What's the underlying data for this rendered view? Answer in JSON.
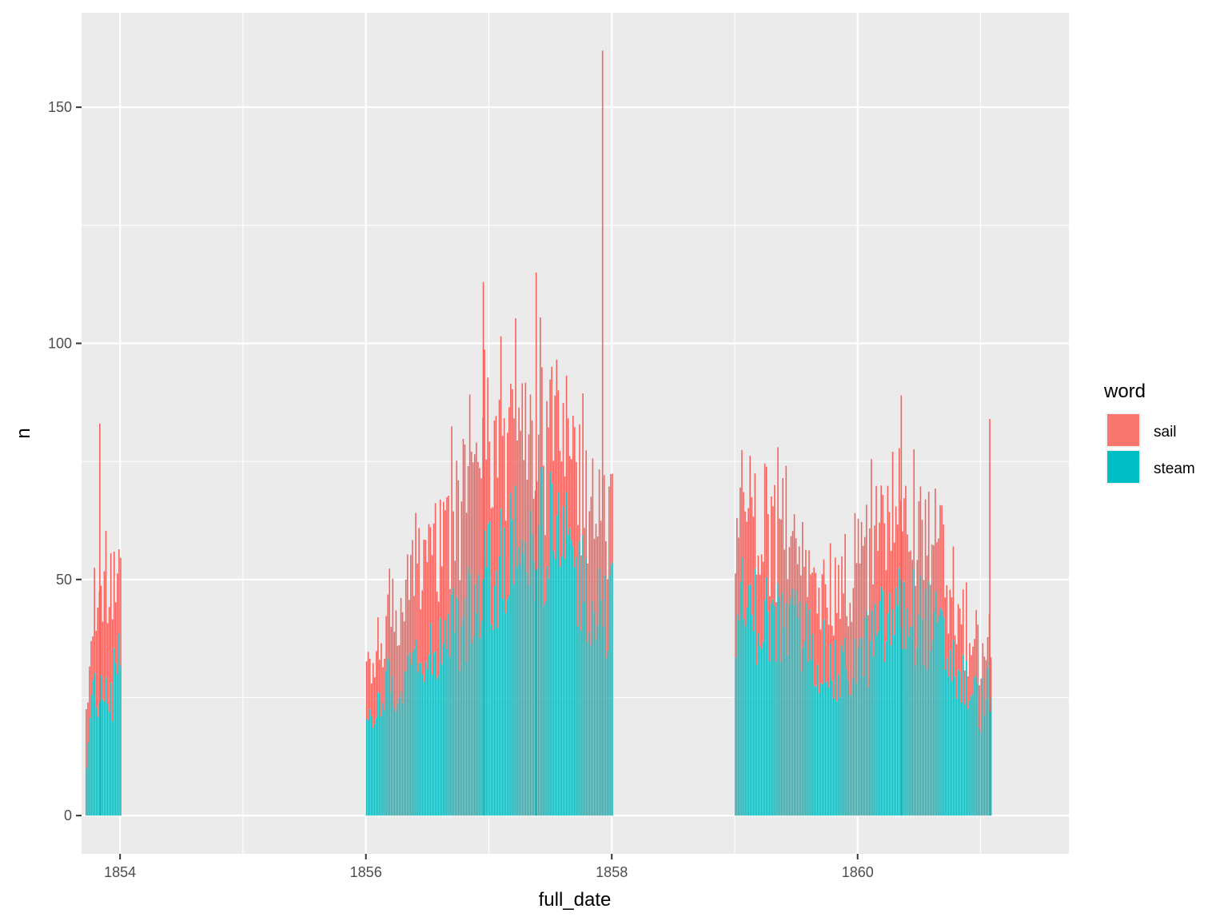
{
  "chart_data": {
    "type": "bar",
    "stacked": true,
    "xlabel": "full_date",
    "ylabel": "n",
    "xlim": [
      1853.6867,
      1861.7188
    ],
    "ylim": [
      -8.1,
      170.0
    ],
    "x_ticks": [
      1854,
      1856,
      1858,
      1860
    ],
    "x_tick_labels": [
      "1854",
      "1856",
      "1858",
      "1860"
    ],
    "x_minor_ticks": [
      1855,
      1857,
      1859,
      1861
    ],
    "y_ticks": [
      0,
      50,
      100,
      150
    ],
    "y_tick_labels": [
      "0",
      "50",
      "100",
      "150"
    ],
    "y_minor_ticks": [
      25,
      75,
      125
    ],
    "grid": true,
    "legend": {
      "title": "word",
      "position": "right",
      "entries": [
        {
          "label": "sail",
          "color": "#F8766D"
        },
        {
          "label": "steam",
          "color": "#00BFC4"
        }
      ]
    },
    "series": [
      {
        "name": "steam",
        "color": "#1AB5B8"
      },
      {
        "name": "sail",
        "color": "#F5635E"
      }
    ],
    "profile_note_omitted": true,
    "segments": [
      {
        "x_start": 1853.72,
        "x_end": 1854.0,
        "x": [
          1853.72,
          1853.79,
          1853.86,
          1853.93,
          1854.0
        ],
        "steam": [
          14,
          27,
          30,
          27,
          38
        ],
        "sail": [
          10,
          18,
          22,
          24,
          20
        ]
      },
      {
        "x_start": 1856.0,
        "x_end": 1858.0,
        "x": [
          1856.0,
          1856.17,
          1856.33,
          1856.5,
          1856.67,
          1856.83,
          1857.0,
          1857.17,
          1857.33,
          1857.5,
          1857.67,
          1857.83,
          1858.0
        ],
        "steam": [
          20,
          28,
          33,
          36,
          40,
          44,
          52,
          58,
          62,
          60,
          55,
          48,
          45
        ],
        "sail": [
          10,
          14,
          18,
          22,
          24,
          28,
          30,
          28,
          22,
          25,
          24,
          22,
          18
        ]
      },
      {
        "x_start": 1859.0,
        "x_end": 1861.08,
        "x": [
          1859.0,
          1859.17,
          1859.33,
          1859.5,
          1859.67,
          1859.83,
          1860.0,
          1860.17,
          1860.33,
          1860.5,
          1860.67,
          1860.83,
          1861.0,
          1861.08
        ],
        "steam": [
          46,
          44,
          42,
          40,
          36,
          30,
          34,
          40,
          44,
          44,
          38,
          30,
          24,
          28
        ],
        "sail": [
          18,
          20,
          22,
          20,
          18,
          16,
          20,
          24,
          26,
          22,
          18,
          12,
          10,
          10
        ]
      }
    ],
    "spikes": [
      {
        "x": 1853.83,
        "steam": 24,
        "sail": 59
      },
      {
        "x": 1856.95,
        "steam": 50,
        "sail": 63
      },
      {
        "x": 1857.38,
        "steam": 52,
        "sail": 63
      },
      {
        "x": 1857.92,
        "steam": 40,
        "sail": 122
      },
      {
        "x": 1860.35,
        "steam": 50,
        "sail": 39
      },
      {
        "x": 1861.07,
        "steam": 22,
        "sail": 62
      }
    ]
  }
}
